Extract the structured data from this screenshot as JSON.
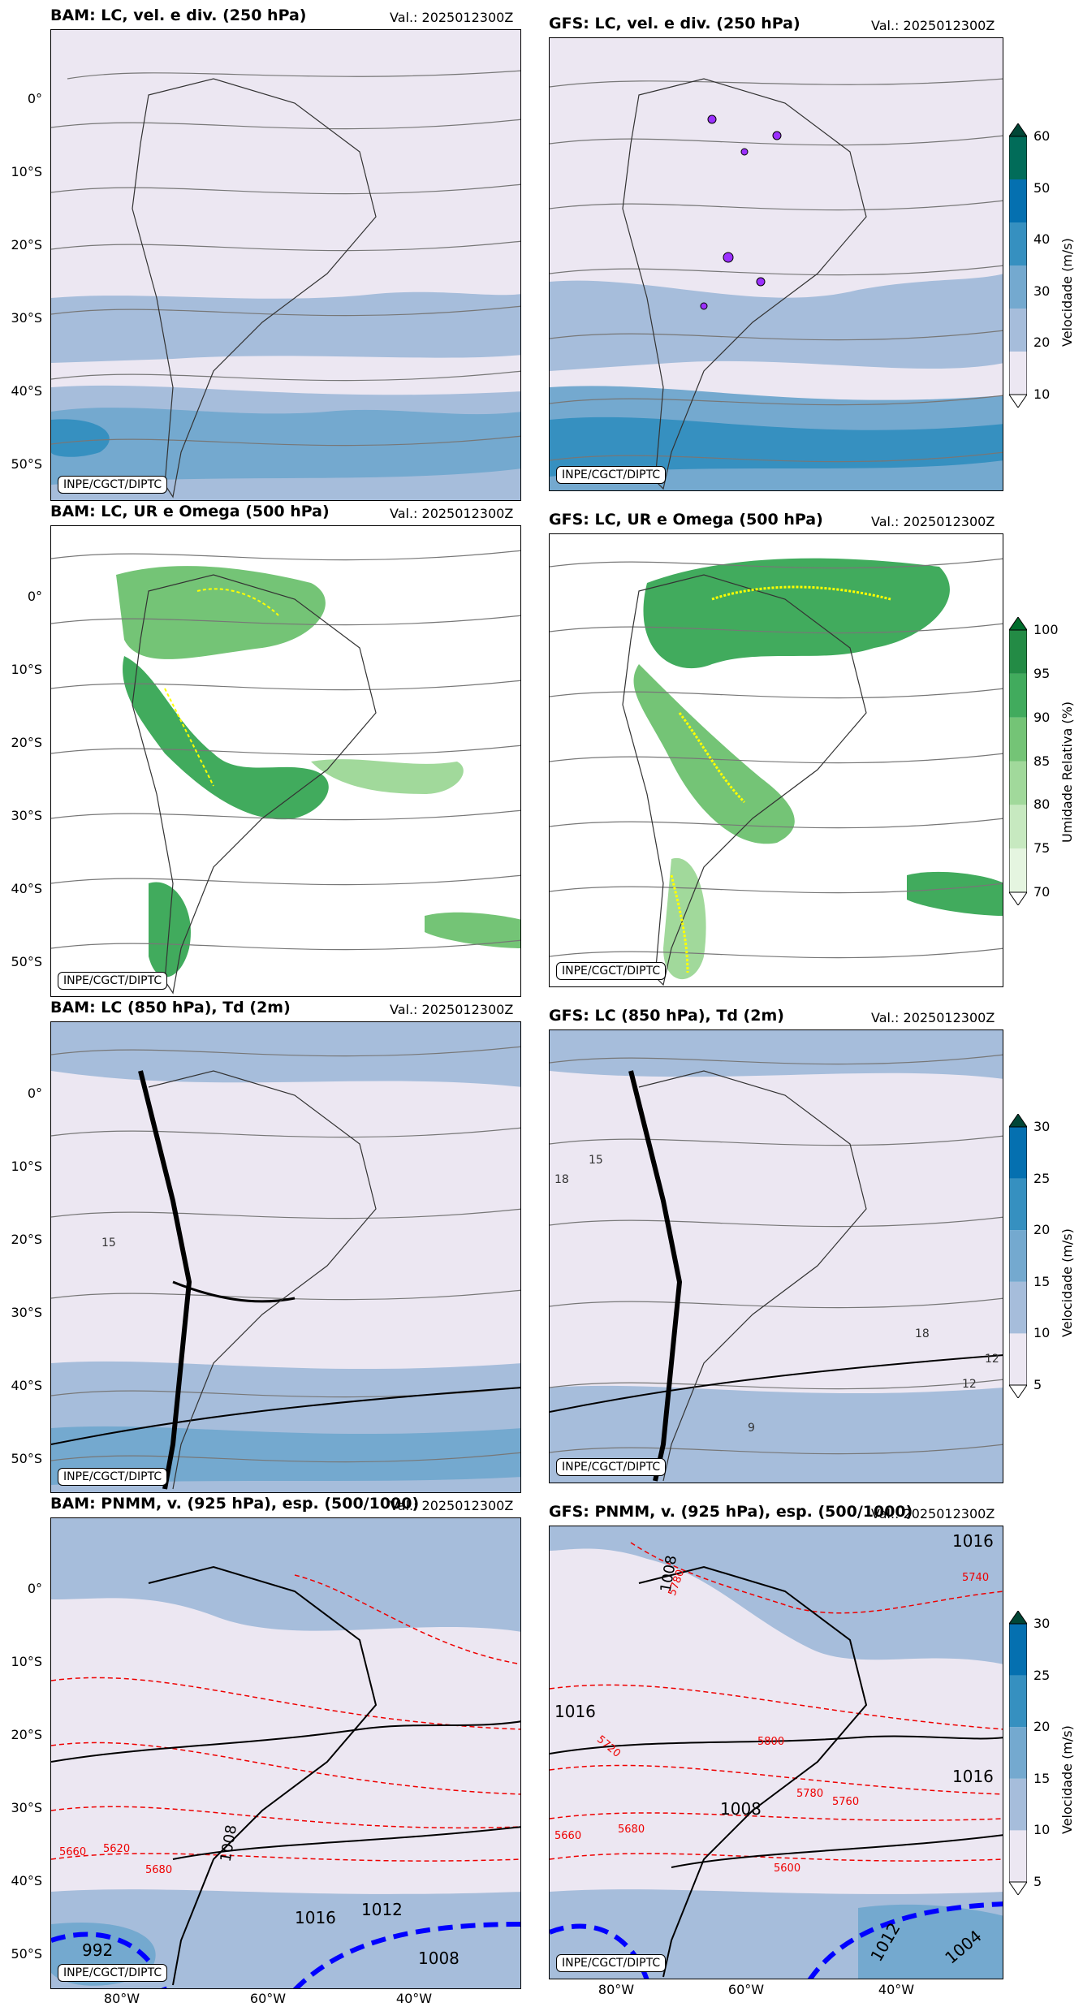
{
  "valid_label": "Val.: 2025012300Z",
  "credit": "INPE/CGCT/DIPTC",
  "rows": [
    {
      "bam_title": "BAM: LC, vel. e div. (250 hPa)",
      "gfs_title": "GFS: LC, vel. e div. (250 hPa)"
    },
    {
      "bam_title": "BAM: LC, UR e Omega (500 hPa)",
      "gfs_title": "GFS: LC, UR e Omega (500 hPa)"
    },
    {
      "bam_title": "BAM: LC (850 hPa), Td (2m)",
      "gfs_title": "GFS: LC (850 hPa), Td (2m)"
    },
    {
      "bam_title": "BAM: PNMM, v. (925 hPa), esp. (500/1000)",
      "gfs_title": "GFS: PNMM, v. (925 hPa), esp. (500/1000)"
    }
  ],
  "lat_labels": [
    "0°",
    "10°S",
    "20°S",
    "30°S",
    "40°S",
    "50°S"
  ],
  "lon_labels": [
    "80°W",
    "60°W",
    "40°W"
  ],
  "colorbars": [
    {
      "label": "Velocidade (m/s)",
      "ticks": [
        "10",
        "20",
        "30",
        "40",
        "50",
        "60"
      ],
      "colors": [
        "#ece7f2",
        "#a6bddb",
        "#74a9cf",
        "#3690c0",
        "#0570b0",
        "#016c59"
      ]
    },
    {
      "label": "Umidade Relativa (%)",
      "ticks": [
        "70",
        "75",
        "80",
        "85",
        "90",
        "95",
        "100"
      ],
      "colors": [
        "#e5f5e0",
        "#c7e9c0",
        "#a1d99b",
        "#74c476",
        "#41ab5d",
        "#238b45"
      ]
    },
    {
      "label": "Velocidade (m/s)",
      "ticks": [
        "5",
        "10",
        "15",
        "20",
        "25",
        "30"
      ],
      "colors": [
        "#ece7f2",
        "#a6bddb",
        "#74a9cf",
        "#3690c0",
        "#0570b0"
      ]
    },
    {
      "label": "Velocidade (m/s)",
      "ticks": [
        "5",
        "10",
        "15",
        "20",
        "25",
        "30"
      ],
      "colors": [
        "#ece7f2",
        "#a6bddb",
        "#74a9cf",
        "#3690c0",
        "#0570b0"
      ]
    }
  ],
  "isobar_labels": {
    "bam": [
      "1016",
      "1012",
      "1008",
      "1008",
      "992"
    ],
    "gfs": [
      "1016",
      "1016",
      "1008",
      "1016",
      "1012",
      "1004",
      "1008"
    ]
  },
  "thickness_labels": {
    "gfs": [
      "5740",
      "5780",
      "5720",
      "5800",
      "5760",
      "5780",
      "5660",
      "5680",
      "5600"
    ],
    "bam": [
      "5660",
      "5680",
      "5620"
    ]
  },
  "dewpoint_labels": {
    "bam": [
      "15"
    ],
    "gfs": [
      "15",
      "18",
      "18",
      "12",
      "12",
      "9"
    ]
  }
}
